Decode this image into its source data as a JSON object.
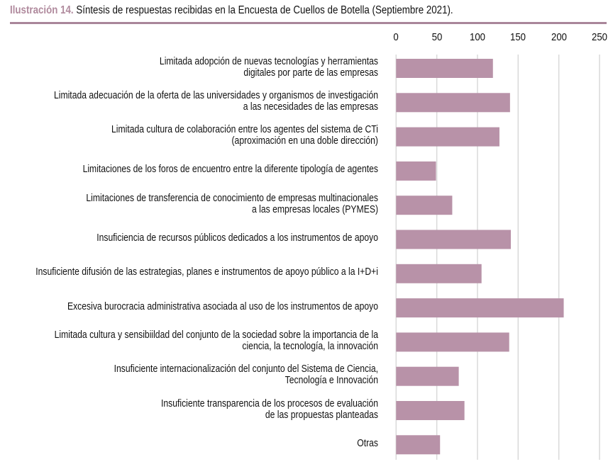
{
  "title": {
    "prefix": "Ilustración 14.",
    "text": "Síntesis de respuestas recibidas en la Encuesta de Cuellos de Botella (Septiembre 2021)."
  },
  "colors": {
    "bar": "#b892a8",
    "accent": "#a9869a",
    "grid": "#d9d9d9"
  },
  "chart_data": {
    "type": "bar",
    "orientation": "horizontal",
    "title": "Síntesis de respuestas recibidas en la Encuesta de Cuellos de Botella (Septiembre 2021).",
    "xlim": [
      0,
      250
    ],
    "ticks": [
      "0",
      "50",
      "100",
      "150",
      "200",
      "250"
    ],
    "tick_values": [
      0,
      50,
      100,
      150,
      200,
      250
    ],
    "grid": true,
    "axis_position": "top",
    "categories": [
      [
        "Limitada adopción de nuevas tecnologías y herramientas",
        "digitales por parte de las empresas"
      ],
      [
        "Limitada adecuación de la oferta de las universidades y organismos de investigación",
        "a las necesidades de las empresas"
      ],
      [
        "Limitada cultura de colaboración entre los agentes del sistema de CTi",
        "(aproximación en una doble dirección)"
      ],
      [
        "Limitaciones de los foros de encuentro entre la diferente tipología de agentes"
      ],
      [
        "Limitaciones de transferencia de conocimiento de empresas multinacionales",
        "a las empresas locales (PYMES)"
      ],
      [
        "Insuficiencia de recursos públicos dedicados a los instrumentos de apoyo"
      ],
      [
        "Insuficiente difusión de las estrategias, planes e instrumentos de apoyo público a la I+D+i"
      ],
      [
        "Excesiva burocracia administrativa asociada al uso de los instrumentos de apoyo"
      ],
      [
        "Limitada cultura y sensibiildad del conjunto de la sociedad sobre la importancia de la",
        "ciencia, la tecnología, la innovación"
      ],
      [
        "Insuficiente internacionalización del conjunto del Sistema de Ciencia,",
        "Tecnología e Innovación"
      ],
      [
        "Insuficiente transparencia de los procesos de evaluación",
        "de las propuestas planteadas"
      ],
      [
        "Otras"
      ]
    ],
    "values": [
      119,
      140,
      127,
      49,
      69,
      141,
      105,
      206,
      139,
      77,
      84,
      54
    ]
  }
}
